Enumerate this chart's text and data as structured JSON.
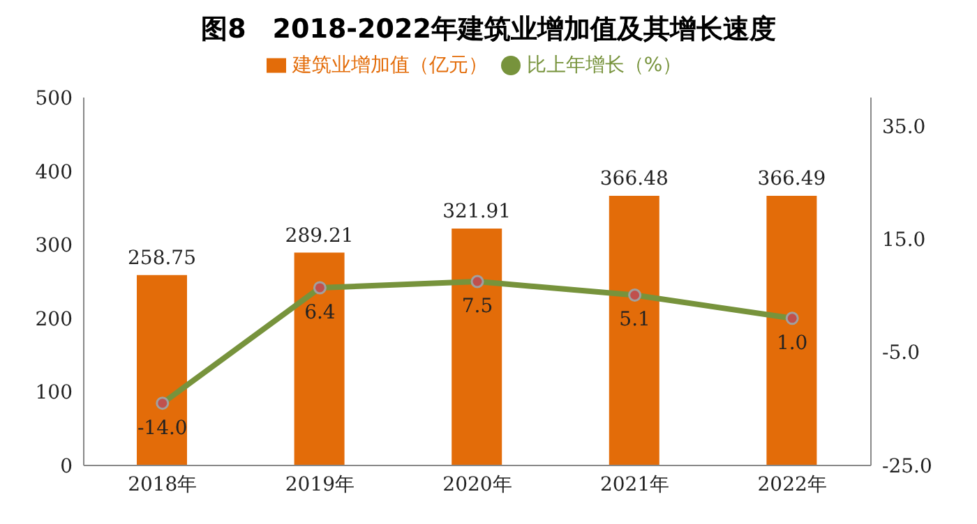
{
  "chart_data": {
    "type": "bar",
    "title": "图8　2018-2022年建筑业增加值及其增长速度",
    "categories": [
      "2018年",
      "2019年",
      "2020年",
      "2021年",
      "2022年"
    ],
    "series": [
      {
        "name": "建筑业增加值（亿元）",
        "color": "#e36c09",
        "values": [
          258.75,
          289.21,
          321.91,
          366.48,
          366.49
        ]
      },
      {
        "name": "比上年增长（%）",
        "type": "line",
        "axis": "y2",
        "color": "#77933c",
        "marker": "circle",
        "values": [
          -14.0,
          6.4,
          7.5,
          5.1,
          1.0
        ],
        "value_labels": [
          "-14.0",
          "6.4",
          "7.5",
          "5.1",
          "1.0"
        ]
      }
    ],
    "ylim": [
      0,
      500
    ],
    "yticks": [
      0,
      100,
      200,
      300,
      400,
      500
    ],
    "y2lim": [
      -25,
      40
    ],
    "y2ticks": [
      {
        "value": 35,
        "label": "35.0"
      },
      {
        "value": 15,
        "label": "15.0"
      },
      {
        "value": -5,
        "label": "-5.0"
      },
      {
        "value": -25,
        "label": "-25.0"
      }
    ],
    "data_labels": true,
    "legend": "top",
    "grid": false
  }
}
